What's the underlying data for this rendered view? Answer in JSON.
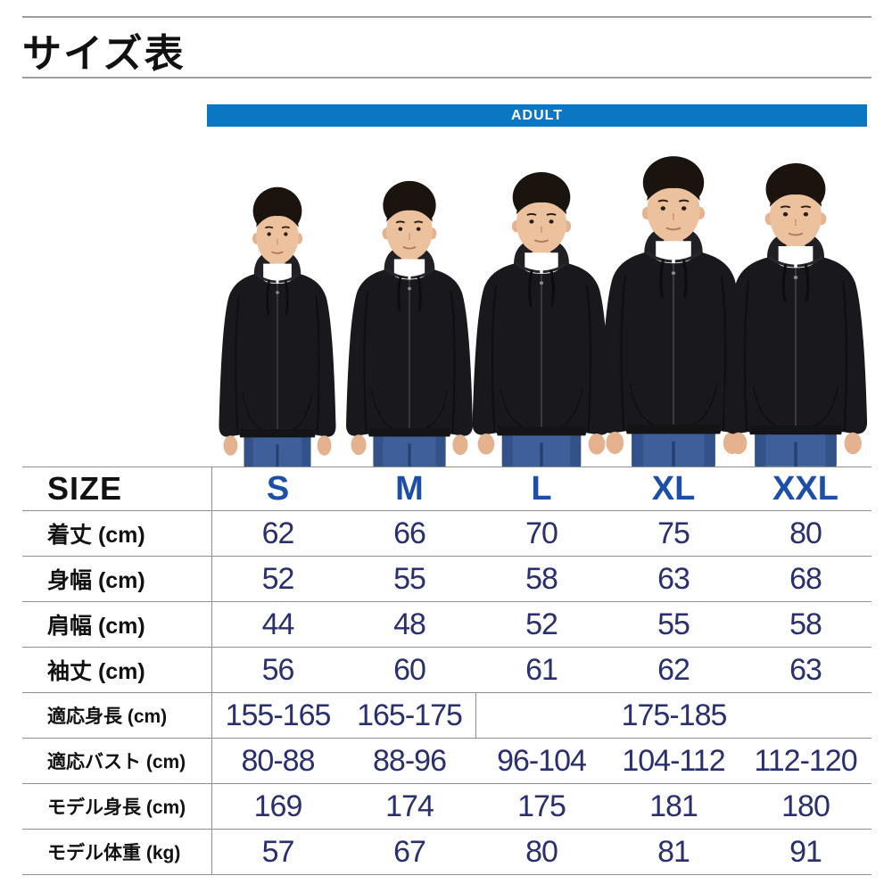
{
  "page": {
    "title": "サイズ表"
  },
  "banner": {
    "label": "ADULT",
    "background_color": "#0b77c2",
    "text_color": "#ffffff"
  },
  "photo": {
    "models": [
      "S",
      "M",
      "L",
      "XL",
      "XXL"
    ]
  },
  "colors": {
    "banner_blue": "#0b77c2",
    "size_header_blue": "#1d4fa8",
    "value_navy": "#2a2f6d",
    "label_black": "#111111",
    "grid_gray": "#8f8f8f"
  },
  "table": {
    "header": {
      "label": "SIZE",
      "columns": [
        "S",
        "M",
        "L",
        "XL",
        "XXL"
      ]
    },
    "rows": [
      {
        "label": "着丈 (cm)",
        "cells": [
          {
            "t": "62"
          },
          {
            "t": "66"
          },
          {
            "t": "70"
          },
          {
            "t": "75"
          },
          {
            "t": "80"
          }
        ]
      },
      {
        "label": "身幅 (cm)",
        "cells": [
          {
            "t": "52"
          },
          {
            "t": "55"
          },
          {
            "t": "58"
          },
          {
            "t": "63"
          },
          {
            "t": "68"
          }
        ]
      },
      {
        "label": "肩幅 (cm)",
        "cells": [
          {
            "t": "44"
          },
          {
            "t": "48"
          },
          {
            "t": "52"
          },
          {
            "t": "55"
          },
          {
            "t": "58"
          }
        ]
      },
      {
        "label": "袖丈 (cm)",
        "cells": [
          {
            "t": "56"
          },
          {
            "t": "60"
          },
          {
            "t": "61"
          },
          {
            "t": "62"
          },
          {
            "t": "63"
          }
        ]
      },
      {
        "label": "適応身長 (cm)",
        "cells": [
          {
            "t": "155-165"
          },
          {
            "t": "165-175"
          },
          {
            "t": "175-185",
            "span": 3
          }
        ]
      },
      {
        "label": "適応バスト (cm)",
        "cells": [
          {
            "t": "80-88"
          },
          {
            "t": "88-96"
          },
          {
            "t": "96-104"
          },
          {
            "t": "104-112"
          },
          {
            "t": "112-120"
          }
        ]
      },
      {
        "label": "モデル身長 (cm)",
        "cells": [
          {
            "t": "169"
          },
          {
            "t": "174"
          },
          {
            "t": "175"
          },
          {
            "t": "181"
          },
          {
            "t": "180"
          }
        ]
      },
      {
        "label": "モデル体重 (kg)",
        "cells": [
          {
            "t": "57"
          },
          {
            "t": "67"
          },
          {
            "t": "80"
          },
          {
            "t": "81"
          },
          {
            "t": "91"
          }
        ]
      }
    ]
  }
}
